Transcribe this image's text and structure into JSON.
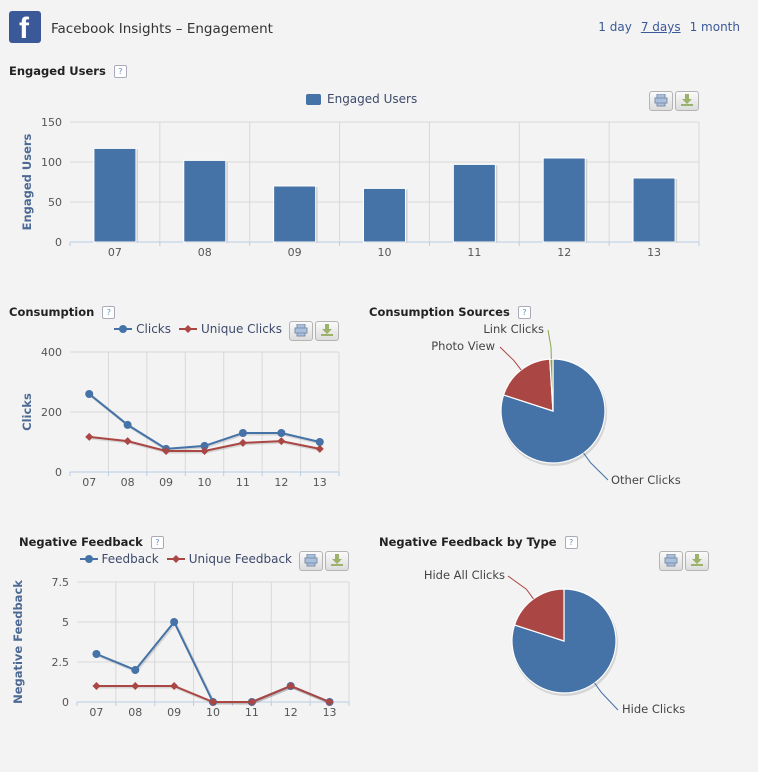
{
  "header": {
    "logo_letter": "f",
    "title": "Facebook Insights – Engagement",
    "ranges": [
      "1 day",
      "7 days",
      "1 month"
    ],
    "active_range": "7 days"
  },
  "help_glyph": "?",
  "colors": {
    "blue": "#4572a7",
    "red": "#aa4643",
    "green": "#89a54e",
    "link": "#3b5998"
  },
  "sections": {
    "engaged": {
      "title": "Engaged Users"
    },
    "consumption": {
      "title": "Consumption"
    },
    "sources": {
      "title": "Consumption Sources"
    },
    "negative": {
      "title": "Negative Feedback"
    },
    "negative_type": {
      "title": "Negative Feedback by Type"
    }
  },
  "chart_data": [
    {
      "id": "engaged",
      "type": "bar",
      "title": "Engaged Users",
      "legend": [
        "Engaged Users"
      ],
      "ylabel": "Engaged Users",
      "categories": [
        "07",
        "08",
        "09",
        "10",
        "11",
        "12",
        "13"
      ],
      "values": [
        117,
        102,
        70,
        67,
        97,
        105,
        80
      ],
      "yticks": [
        0,
        50,
        100,
        150
      ],
      "ylim": [
        0,
        150
      ],
      "grid": true
    },
    {
      "id": "consumption",
      "type": "line",
      "title": "Consumption",
      "ylabel": "Clicks",
      "categories": [
        "07",
        "08",
        "09",
        "10",
        "11",
        "12",
        "13"
      ],
      "series": [
        {
          "name": "Clicks",
          "values": [
            260,
            157,
            77,
            87,
            130,
            130,
            100
          ]
        },
        {
          "name": "Unique Clicks",
          "values": [
            117,
            103,
            70,
            70,
            97,
            103,
            77
          ]
        }
      ],
      "yticks": [
        0,
        200,
        400
      ],
      "ylim": [
        0,
        400
      ],
      "grid": true
    },
    {
      "id": "sources",
      "type": "pie",
      "title": "Consumption Sources",
      "slices": [
        {
          "label": "Other Clicks",
          "value": 80
        },
        {
          "label": "Photo View",
          "value": 19
        },
        {
          "label": "Link Clicks",
          "value": 1
        }
      ]
    },
    {
      "id": "negative",
      "type": "line",
      "title": "Negative Feedback",
      "ylabel": "Negative Feedback",
      "categories": [
        "07",
        "08",
        "09",
        "10",
        "11",
        "12",
        "13"
      ],
      "series": [
        {
          "name": "Feedback",
          "values": [
            3,
            2,
            5,
            0,
            0,
            1,
            0
          ]
        },
        {
          "name": "Unique Feedback",
          "values": [
            1,
            1,
            1,
            0,
            0,
            1,
            0
          ]
        }
      ],
      "yticks": [
        0,
        2.5,
        5,
        7.5
      ],
      "ylim": [
        0,
        7.5
      ],
      "grid": true
    },
    {
      "id": "negative_type",
      "type": "pie",
      "title": "Negative Feedback by Type",
      "slices": [
        {
          "label": "Hide Clicks",
          "value": 80
        },
        {
          "label": "Hide All Clicks",
          "value": 20
        }
      ]
    }
  ]
}
